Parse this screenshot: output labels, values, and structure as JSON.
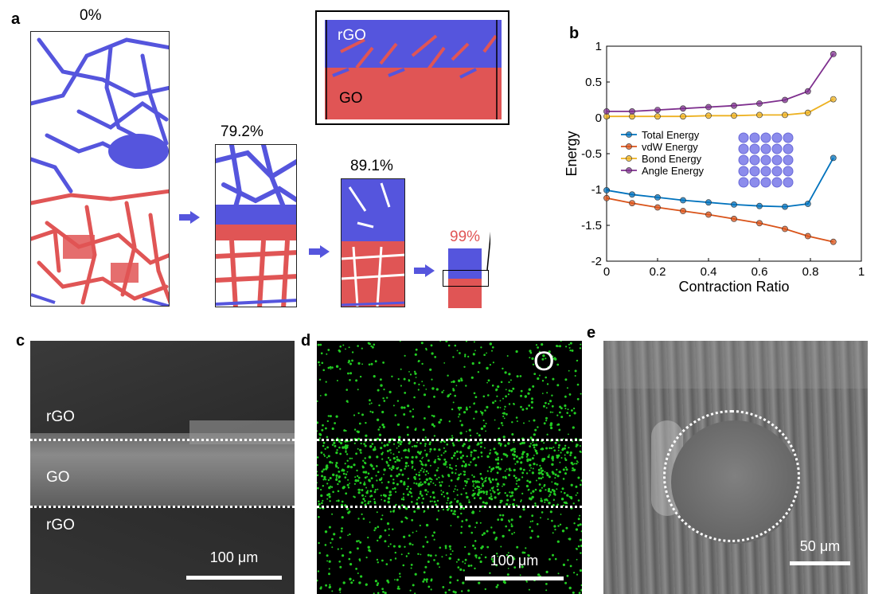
{
  "panel_a": {
    "label": "a",
    "snapshots": [
      {
        "name": "snap-0",
        "pct": "0%"
      },
      {
        "name": "snap-79",
        "pct": "79.2%"
      },
      {
        "name": "snap-89",
        "pct": "89.1%"
      },
      {
        "name": "snap-99",
        "pct": "99%"
      }
    ],
    "inset": {
      "top_label": "rGO",
      "bottom_label": "GO"
    },
    "colors": {
      "blue": "#5555dd",
      "red": "#e05555",
      "highlight": "#e05555"
    }
  },
  "panel_b": {
    "label": "b",
    "chart_data": {
      "type": "line",
      "xlabel": "Contraction Ratio",
      "ylabel": "Energy",
      "xlim": [
        0,
        1
      ],
      "ylim": [
        -2,
        1
      ],
      "xticks": [
        "0",
        "0.2",
        "0.4",
        "0.6",
        "0.8",
        "1"
      ],
      "yticks": [
        "1",
        "0.5",
        "0",
        "-0.5",
        "-1",
        "-1.5",
        "-2"
      ],
      "x": [
        0,
        0.1,
        0.2,
        0.3,
        0.4,
        0.5,
        0.6,
        0.7,
        0.79,
        0.89
      ],
      "legend_position": "center-left",
      "series": [
        {
          "name": "Total Energy",
          "color": "#0072bd",
          "values": [
            -1.01,
            -1.07,
            -1.11,
            -1.15,
            -1.18,
            -1.21,
            -1.23,
            -1.24,
            -1.2,
            -0.56
          ]
        },
        {
          "name": "vdW Energy",
          "color": "#d95319",
          "values": [
            -1.12,
            -1.19,
            -1.25,
            -1.3,
            -1.35,
            -1.41,
            -1.47,
            -1.55,
            -1.65,
            -1.73
          ]
        },
        {
          "name": "Bond Energy",
          "color": "#edb120",
          "values": [
            0.02,
            0.02,
            0.02,
            0.02,
            0.03,
            0.03,
            0.04,
            0.04,
            0.07,
            0.26
          ]
        },
        {
          "name": "Angle Energy",
          "color": "#7e2f8e",
          "values": [
            0.09,
            0.09,
            0.11,
            0.13,
            0.15,
            0.17,
            0.2,
            0.25,
            0.37,
            0.89
          ]
        }
      ]
    }
  },
  "panel_c": {
    "label": "c",
    "top": "rGO",
    "middle": "GO",
    "bottom": "rGO",
    "scale": "100 μm"
  },
  "panel_d": {
    "label": "d",
    "element": "O",
    "scale": "100 μm"
  },
  "panel_e": {
    "label": "e",
    "scale": "50 μm"
  }
}
